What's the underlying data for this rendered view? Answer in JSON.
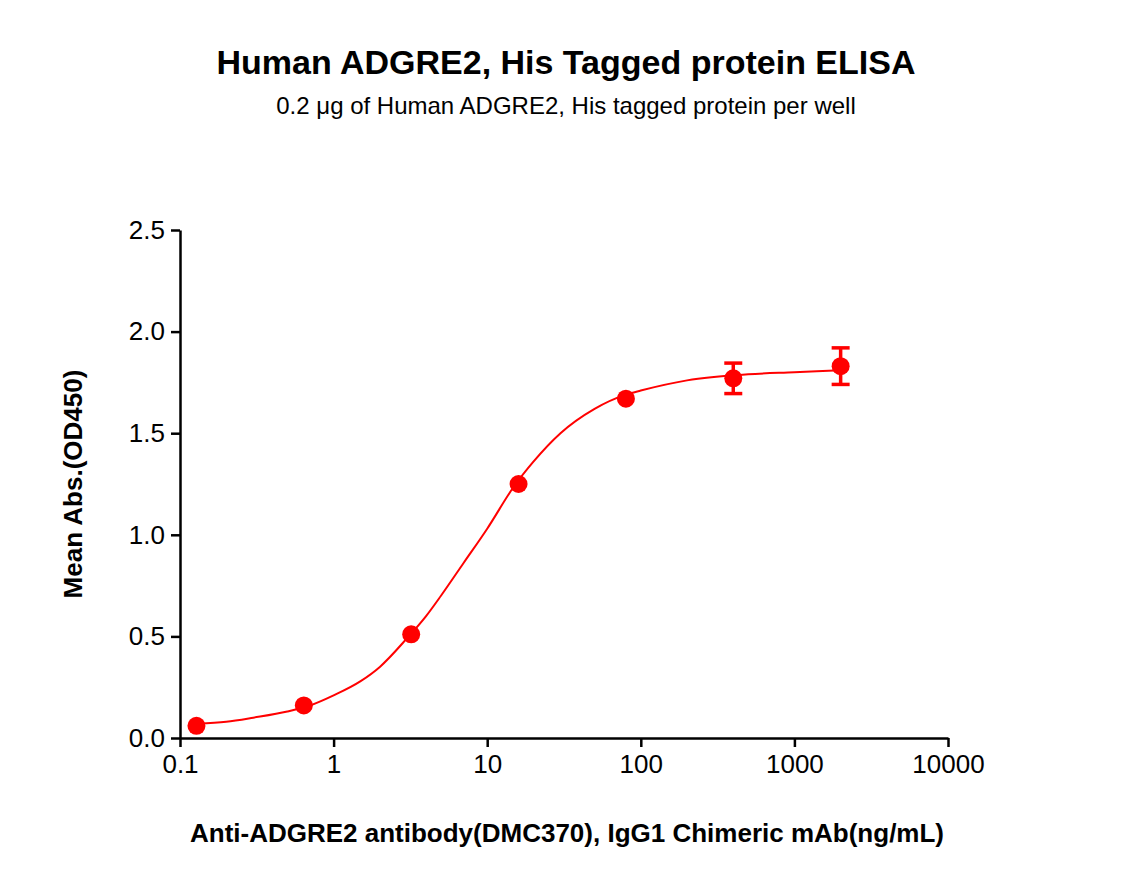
{
  "chart_data": {
    "type": "scatter",
    "title": "Human ADGRE2, His Tagged protein ELISA",
    "subtitle": "0.2 μg of Human ADGRE2, His tagged protein per well",
    "x_label": "Anti-ADGRE2 antibody(DMC370), IgG1 Chimeric mAb(ng/mL)",
    "y_label": "Mean Abs.(OD450)",
    "log": "x",
    "grid": false,
    "xlim": [
      0.1,
      10000
    ],
    "xticks": [
      0.1,
      1,
      10,
      100,
      1000,
      10000
    ],
    "ylim": [
      0,
      2.5
    ],
    "yticks": [
      {
        "value": 0,
        "label": "0.0"
      },
      0.5,
      {
        "value": 1,
        "label": "1.0"
      },
      1.5,
      {
        "value": 2,
        "label": "2.0"
      },
      2.5
    ],
    "series": [
      {
        "type": "scatter",
        "marker": "circle",
        "color": "#ff0000",
        "x": [
          0.128,
          0.64,
          3.2,
          16,
          80,
          400,
          2000
        ],
        "values": [
          0.06,
          0.16,
          0.51,
          1.25,
          1.67,
          1.77,
          1.83
        ],
        "errors": [
          0,
          0,
          0,
          0,
          0,
          0.075,
          0.09
        ]
      },
      {
        "type": "line",
        "line_style": "solid",
        "color": "#ff0000",
        "x": [
          0.13,
          0.2,
          0.3,
          0.5,
          0.7,
          1,
          1.5,
          2,
          3,
          4,
          5,
          7,
          10,
          15,
          20,
          30,
          50,
          80,
          100,
          200,
          500,
          1000,
          2000
        ],
        "values": [
          0.07,
          0.08,
          0.1,
          0.13,
          0.16,
          0.21,
          0.28,
          0.35,
          0.49,
          0.6,
          0.7,
          0.86,
          1.03,
          1.24,
          1.36,
          1.5,
          1.62,
          1.69,
          1.71,
          1.76,
          1.79,
          1.8,
          1.81
        ]
      }
    ]
  }
}
